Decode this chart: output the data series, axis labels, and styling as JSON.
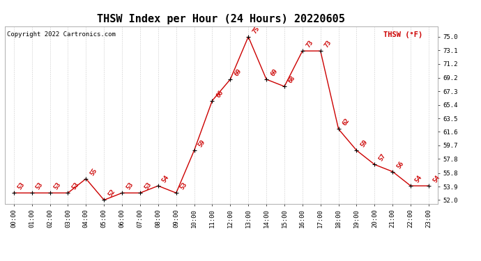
{
  "title": "THSW Index per Hour (24 Hours) 20220605",
  "copyright": "Copyright 2022 Cartronics.com",
  "legend_label": "THSW (°F)",
  "hours": [
    0,
    1,
    2,
    3,
    4,
    5,
    6,
    7,
    8,
    9,
    10,
    11,
    12,
    13,
    14,
    15,
    16,
    17,
    18,
    19,
    20,
    21,
    22,
    23
  ],
  "values": [
    53,
    53,
    53,
    53,
    55,
    52,
    53,
    53,
    54,
    53,
    59,
    66,
    69,
    75,
    69,
    68,
    73,
    73,
    62,
    59,
    57,
    56,
    54,
    54
  ],
  "x_labels": [
    "00:00",
    "01:00",
    "02:00",
    "03:00",
    "04:00",
    "05:00",
    "06:00",
    "07:00",
    "08:00",
    "09:00",
    "10:00",
    "11:00",
    "12:00",
    "13:00",
    "14:00",
    "15:00",
    "16:00",
    "17:00",
    "18:00",
    "19:00",
    "20:00",
    "21:00",
    "22:00",
    "23:00"
  ],
  "y_ticks": [
    52.0,
    53.9,
    55.8,
    57.8,
    59.7,
    61.6,
    63.5,
    65.4,
    67.3,
    69.2,
    71.2,
    73.1,
    75.0
  ],
  "ylim": [
    51.5,
    76.5
  ],
  "line_color": "#cc0000",
  "marker_color": "#000000",
  "grid_color": "#cccccc",
  "bg_color": "#ffffff",
  "title_fontsize": 11,
  "label_fontsize": 6.5,
  "copyright_fontsize": 6.5,
  "legend_fontsize": 7.5,
  "data_label_fontsize": 6.5
}
